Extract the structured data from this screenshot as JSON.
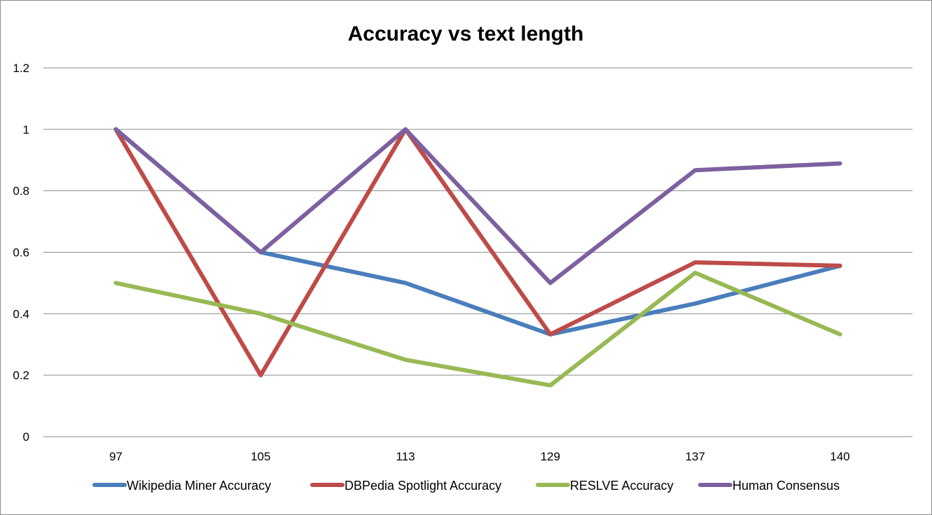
{
  "chart_data": {
    "type": "line",
    "title": "Accuracy vs text length",
    "xlabel": "",
    "ylabel": "",
    "categories": [
      "97",
      "105",
      "113",
      "129",
      "137",
      "140"
    ],
    "ylim": [
      0,
      1.2
    ],
    "yticks": [
      "0",
      "0.2",
      "0.4",
      "0.6",
      "0.8",
      "1",
      "1.2"
    ],
    "grid": true,
    "legend_position": "bottom",
    "series": [
      {
        "name": "Wikipedia Miner Accuracy",
        "color": "#4a7ebb",
        "values": [
          1.0,
          0.6,
          0.5,
          0.333,
          0.433,
          0.556
        ]
      },
      {
        "name": "DBPedia Spotlight Accuracy",
        "color": "#be4b48",
        "values": [
          1.0,
          0.2,
          1.0,
          0.333,
          0.567,
          0.556
        ]
      },
      {
        "name": "RESLVE Accuracy",
        "color": "#98b954",
        "values": [
          0.5,
          0.4,
          0.25,
          0.167,
          0.533,
          0.333
        ]
      },
      {
        "name": "Human Consensus",
        "color": "#7d60a0",
        "values": [
          1.0,
          0.6,
          1.0,
          0.5,
          0.867,
          0.889
        ]
      }
    ]
  }
}
